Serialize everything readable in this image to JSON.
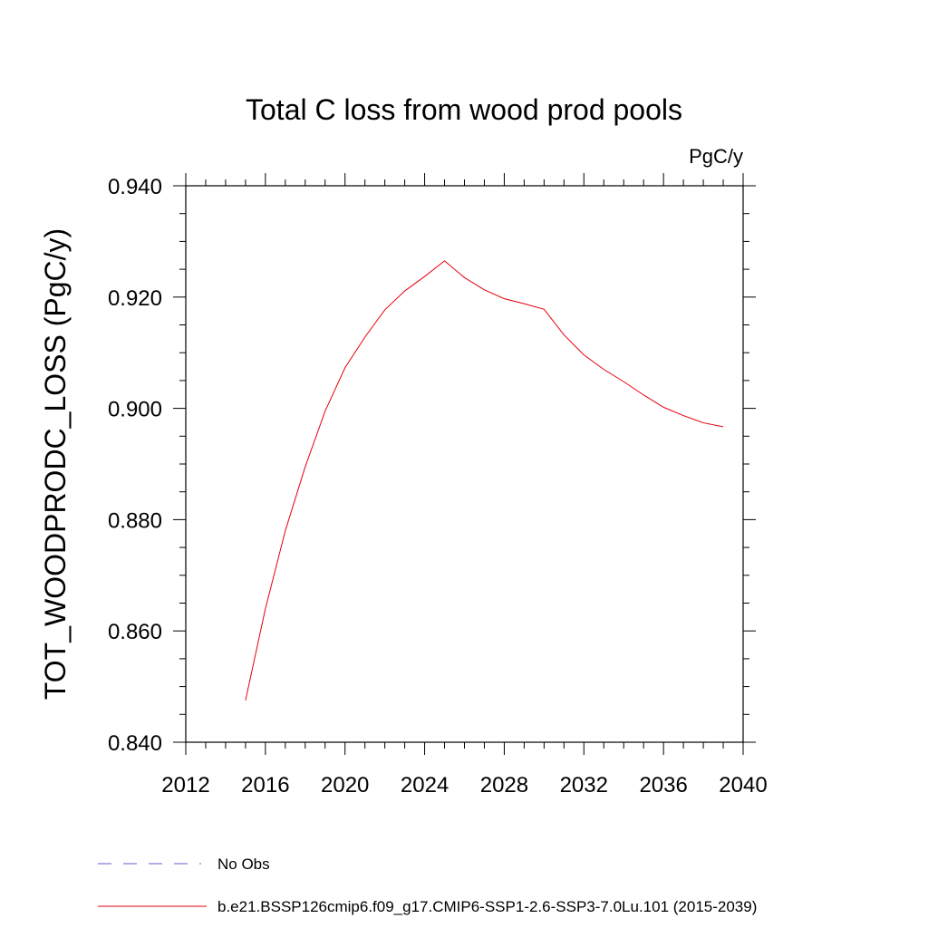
{
  "chart_data": {
    "type": "line",
    "title": "Total C loss from wood prod pools",
    "units_label": "PgC/y",
    "ylabel": "TOT_WOODPRODC_LOSS  (PgC/y)",
    "xlabel": "",
    "xlim": [
      2012,
      2040
    ],
    "ylim": [
      0.84,
      0.94
    ],
    "x_ticks": [
      2012,
      2016,
      2020,
      2024,
      2028,
      2032,
      2036,
      2040
    ],
    "x_tick_labels": [
      "2012",
      "2016",
      "2020",
      "2024",
      "2028",
      "2032",
      "2036",
      "2040"
    ],
    "y_ticks": [
      0.84,
      0.86,
      0.88,
      0.9,
      0.92,
      0.94
    ],
    "y_tick_labels": [
      "0.840",
      "0.860",
      "0.880",
      "0.900",
      "0.920",
      "0.940"
    ],
    "grid": false,
    "legend_position": "bottom",
    "series": [
      {
        "name": "No Obs",
        "color": "#6a5acd",
        "dash": "dashed",
        "x": [],
        "y": []
      },
      {
        "name": "b.e21.BSSP126cmip6.f09_g17.CMIP6-SSP1-2.6-SSP3-7.0Lu.101 (2015-2039)",
        "color": "#e8000b",
        "dash": "solid",
        "x": [
          2015,
          2016,
          2017,
          2018,
          2019,
          2020,
          2021,
          2022,
          2023,
          2024,
          2025,
          2026,
          2027,
          2028,
          2029,
          2030,
          2031,
          2032,
          2033,
          2034,
          2035,
          2036,
          2037,
          2038,
          2039
        ],
        "y": [
          0.8475,
          0.864,
          0.878,
          0.8895,
          0.8995,
          0.9073,
          0.9128,
          0.9177,
          0.9211,
          0.9237,
          0.9265,
          0.9235,
          0.9213,
          0.9197,
          0.9188,
          0.9178,
          0.9132,
          0.9096,
          0.907,
          0.9048,
          0.9024,
          0.9002,
          0.8987,
          0.8974,
          0.8967
        ]
      }
    ]
  }
}
